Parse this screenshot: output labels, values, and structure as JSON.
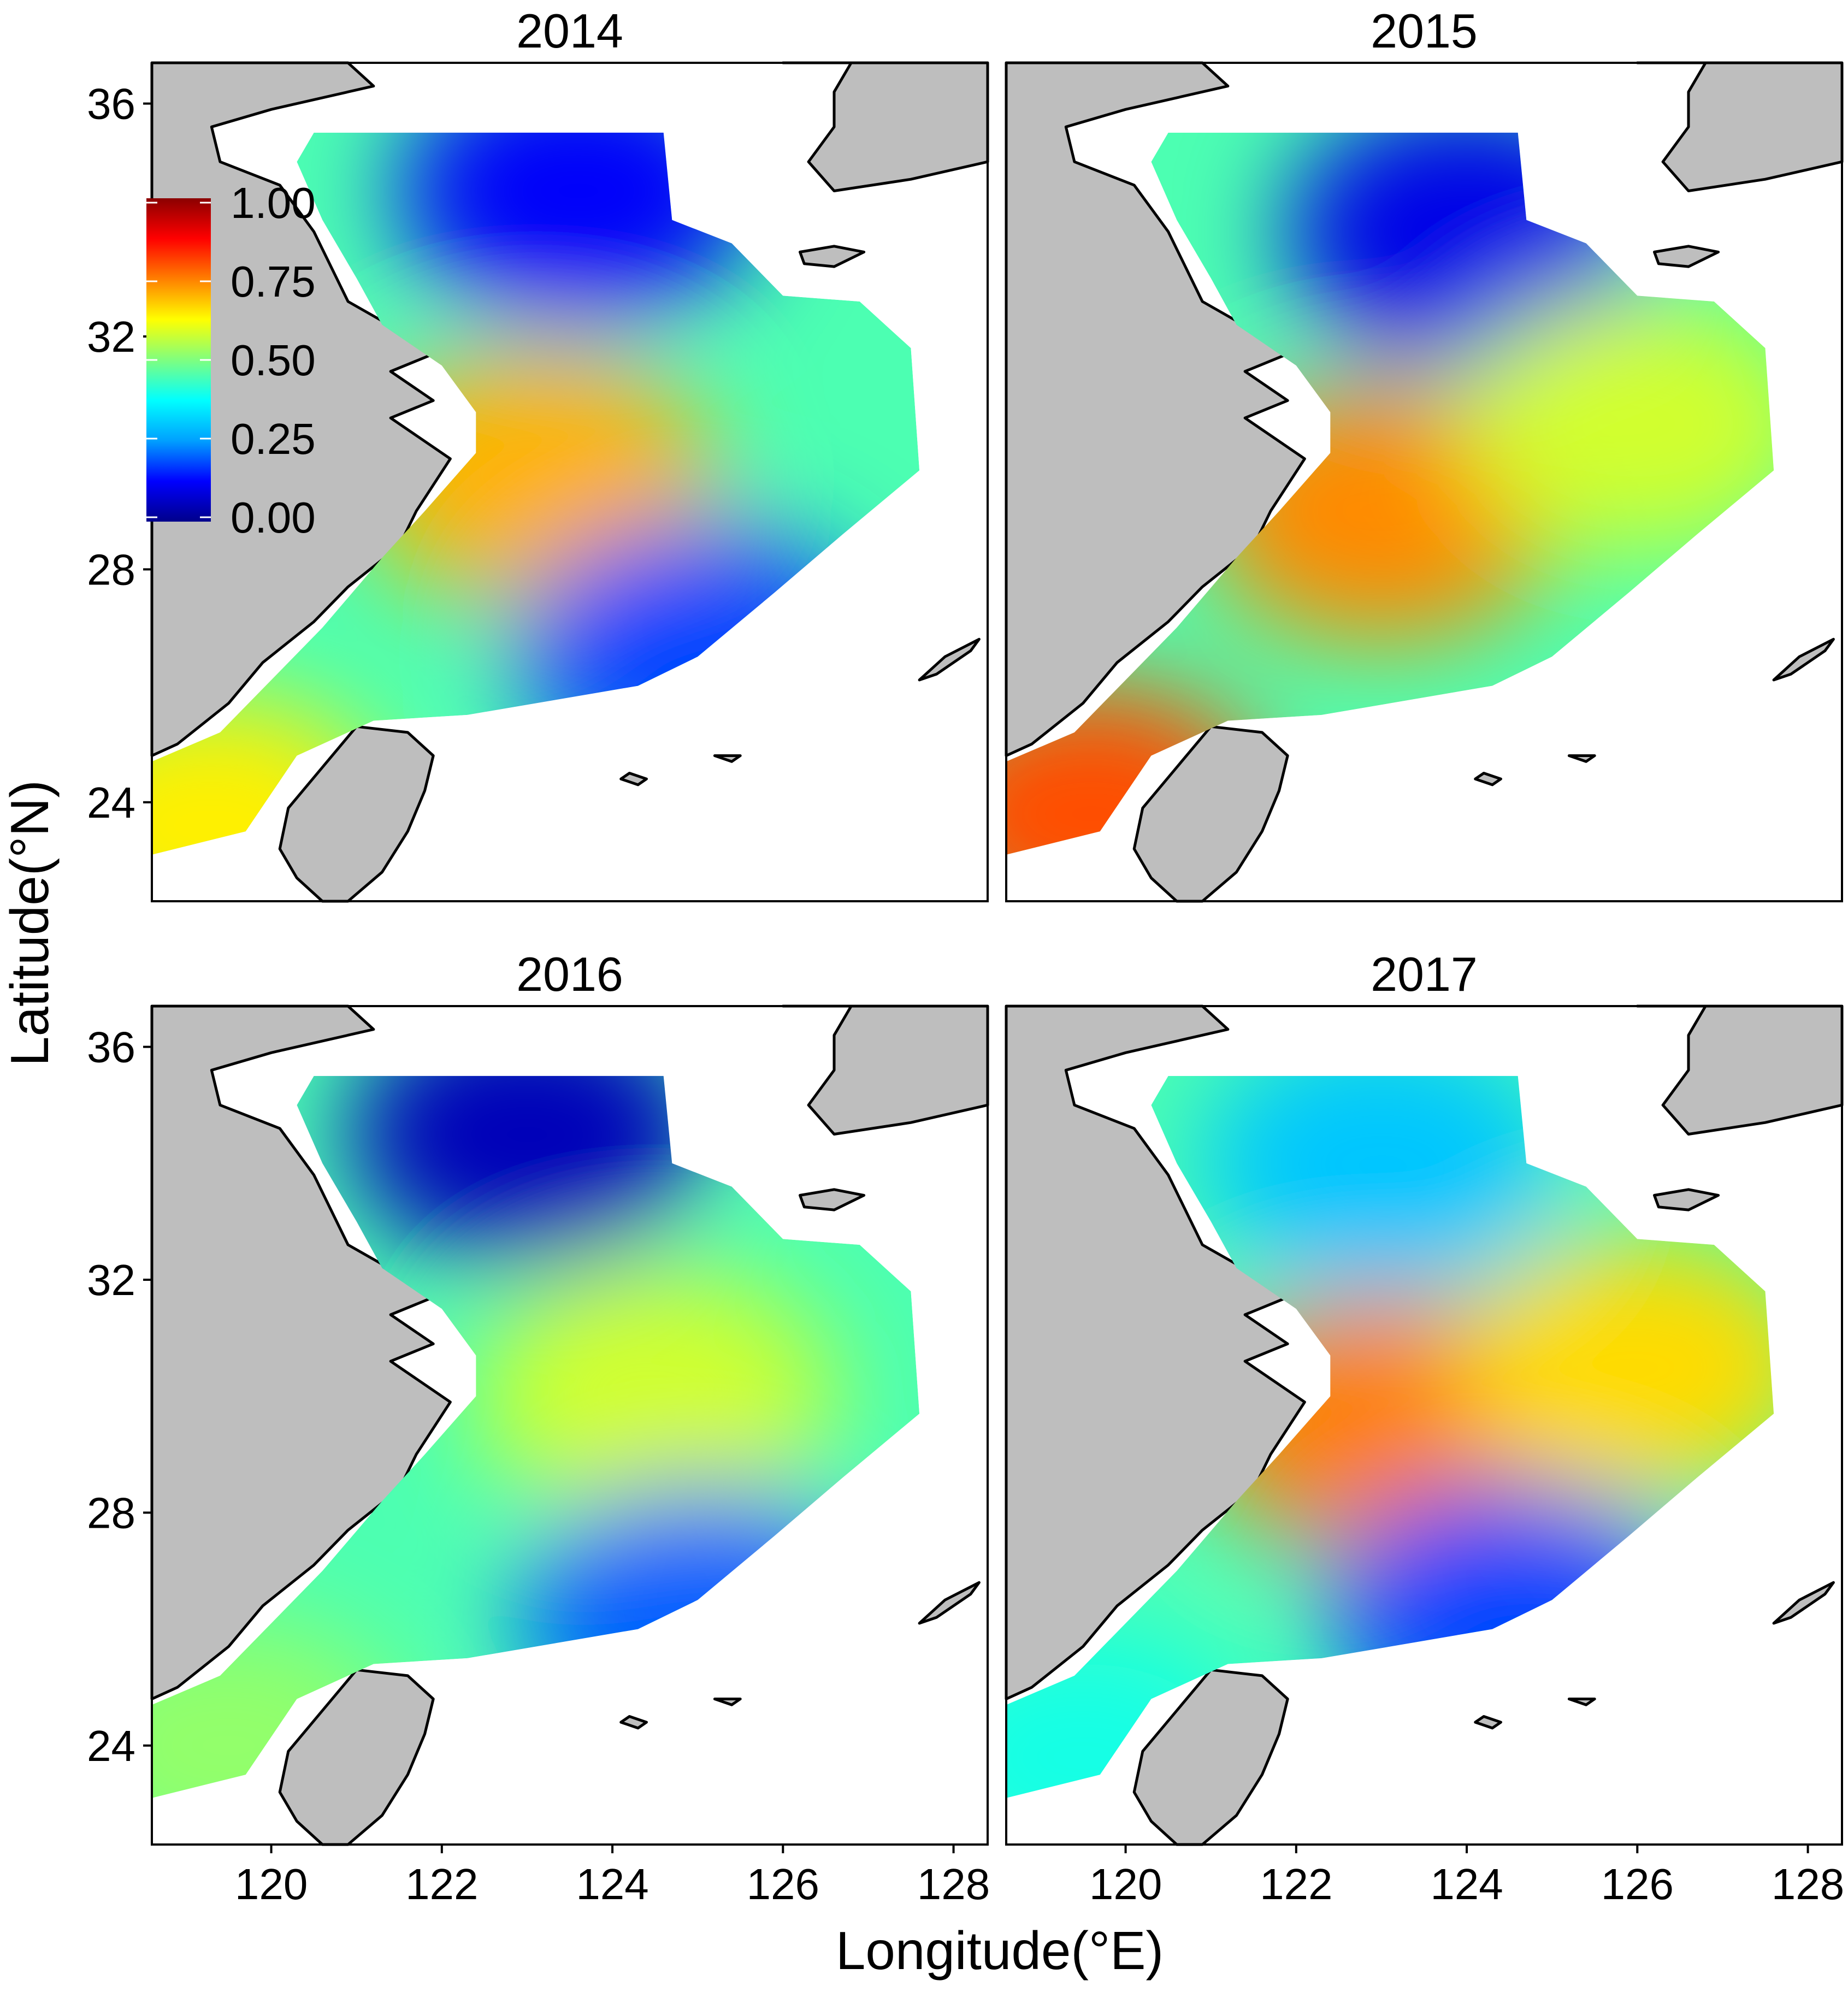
{
  "figure": {
    "panels": [
      {
        "title": "2014",
        "hotspots": [
          {
            "lon": 123.1,
            "lat": 29.6,
            "v": 0.7
          },
          {
            "lon": 119.3,
            "lat": 23.6,
            "v": 0.64
          },
          {
            "lon": 123.6,
            "lat": 34.5,
            "v": 0.12
          },
          {
            "lon": 125.0,
            "lat": 26.5,
            "v": 0.18
          }
        ]
      },
      {
        "title": "2015",
        "hotspots": [
          {
            "lon": 119.6,
            "lat": 23.8,
            "v": 0.8
          },
          {
            "lon": 123.0,
            "lat": 29.0,
            "v": 0.74
          },
          {
            "lon": 124.0,
            "lat": 33.8,
            "v": 0.1
          },
          {
            "lon": 126.0,
            "lat": 30.5,
            "v": 0.58
          }
        ]
      },
      {
        "title": "2016",
        "hotspots": [
          {
            "lon": 123.0,
            "lat": 34.5,
            "v": 0.05
          },
          {
            "lon": 124.5,
            "lat": 30.0,
            "v": 0.58
          },
          {
            "lon": 125.0,
            "lat": 26.2,
            "v": 0.2
          },
          {
            "lon": 119.5,
            "lat": 24.0,
            "v": 0.52
          }
        ]
      },
      {
        "title": "2017",
        "hotspots": [
          {
            "lon": 123.0,
            "lat": 29.5,
            "v": 0.75
          },
          {
            "lon": 126.0,
            "lat": 30.5,
            "v": 0.66
          },
          {
            "lon": 124.5,
            "lat": 26.2,
            "v": 0.18
          },
          {
            "lon": 123.0,
            "lat": 34.0,
            "v": 0.3
          },
          {
            "lon": 119.5,
            "lat": 23.8,
            "v": 0.4
          }
        ]
      }
    ],
    "x_axis": {
      "label": "Longitude(°E)",
      "ticks": [
        "120",
        "122",
        "124",
        "126",
        "128"
      ],
      "range": [
        118.6,
        128.4
      ]
    },
    "y_axis": {
      "label": "Latitude(°N)",
      "ticks": [
        "24",
        "28",
        "32",
        "36"
      ],
      "range": [
        22.3,
        36.7
      ]
    },
    "legend": {
      "labels": [
        "1.00",
        "0.75",
        "0.50",
        "0.25",
        "0.00"
      ],
      "colors": [
        "#00008b",
        "#0000ff",
        "#00a0ff",
        "#00ffff",
        "#7fff7f",
        "#ffff00",
        "#ff8000",
        "#ff0000",
        "#8b0000"
      ]
    },
    "colors": {
      "land": "#bebebe",
      "coast": "#000000",
      "frame": "#000000",
      "background": "#ffffff"
    }
  }
}
